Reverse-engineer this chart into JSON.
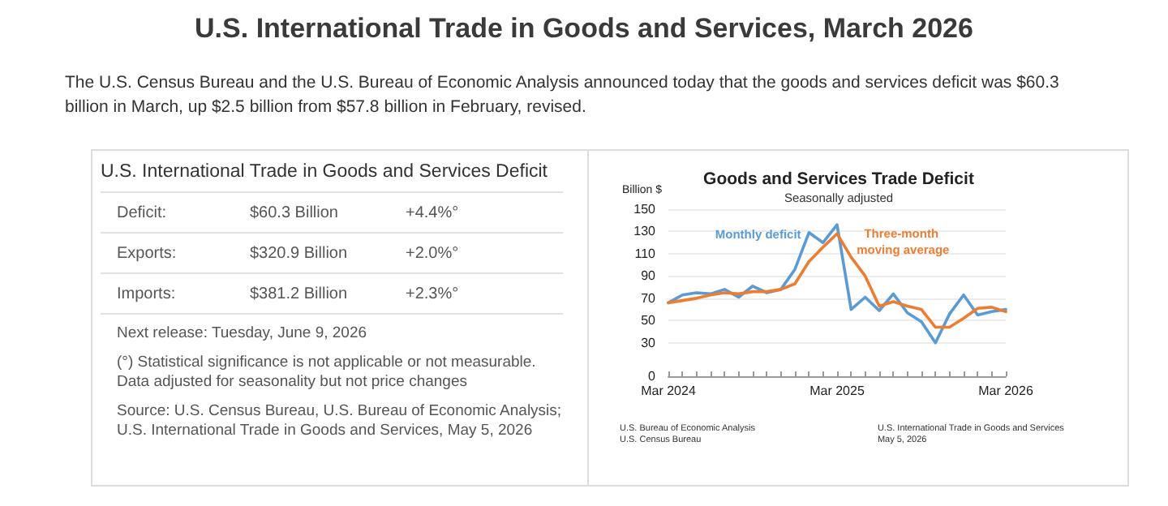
{
  "chart_data": [
    {
      "type": "other",
      "title": "U.S. International Trade in Goods and Services, March 2026",
      "annotations": [
        "The U.S. Census Bureau and the U.S. Bureau of Economic Analysis announced today that the goods and services deficit was $60.3 billion in March, up $2.5 billion from $57.8 billion in February, revised."
      ]
    },
    {
      "type": "other",
      "title": "U.S. International Trade in Goods and Services Deficit",
      "annotations": [
        "Deficit:\t$60.3 Billion\t+4.4%°",
        "Exports:\t$320.9 Billion\t+2.0%°",
        "Imports:\t$381.2 Billion\t+2.3%°",
        "Next release: Tuesday, June 9, 2026",
        "(°) Statistical significance is not applicable or not measurable. Data adjusted for seasonality but not price changes",
        "Source: U.S. Census Bureau, U.S. Bureau of Economic Analysis; U.S. International Trade in Goods and Services, May 5, 2026"
      ]
    },
    {
      "type": "line",
      "title": "Goods and Services Trade Deficit",
      "subtitle": "Seasonally adjusted",
      "ylabel": "Billion $",
      "categories": [
        "Mar 2024",
        null,
        null,
        null,
        null,
        null,
        null,
        null,
        null,
        null,
        null,
        null,
        "Mar 2025",
        null,
        null,
        null,
        null,
        null,
        null,
        null,
        null,
        null,
        null,
        null,
        "Mar 2026"
      ],
      "series": [
        {
          "name": "Monthly deficit",
          "color": "#5b9bd5",
          "values": [
            66,
            73,
            75,
            74,
            78,
            71,
            81,
            75,
            78,
            96,
            129,
            120,
            136,
            60,
            71,
            59,
            74,
            57,
            49,
            30,
            56,
            73,
            55,
            58,
            60
          ]
        },
        {
          "name": "Three-month moving average",
          "color": "#ed7d31",
          "values": [
            66,
            68,
            70,
            73,
            75,
            74,
            76,
            76,
            78,
            83,
            103,
            116,
            128,
            107,
            90,
            63,
            67,
            63,
            60,
            44,
            44,
            52,
            61,
            62,
            58
          ]
        }
      ],
      "ylim": [
        0,
        150
      ],
      "yticks": [
        0,
        30,
        50,
        70,
        90,
        110,
        130,
        150
      ],
      "grid": "y",
      "marker": "none",
      "line_style": "solid",
      "annotations": [
        "U.S. Bureau of Economic Analysis\nU.S. Census Bureau",
        "U.S. International Trade in Goods and Services\nMay 5, 2026"
      ]
    }
  ]
}
